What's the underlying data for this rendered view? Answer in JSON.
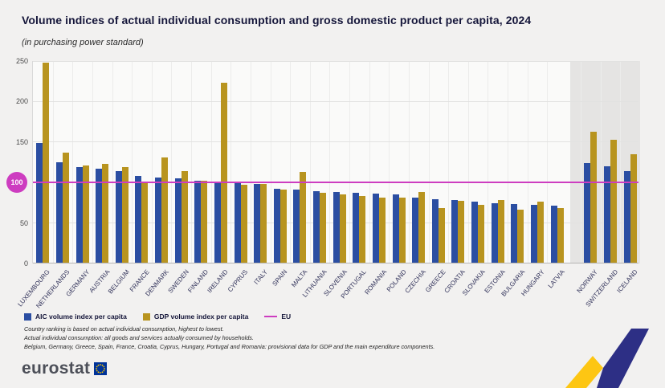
{
  "title": "Volume indices of actual individual consumption and gross domestic product per capita, 2024",
  "subtitle": "(in purchasing power standard)",
  "legend": {
    "aic_label": "AIC volume index per capita",
    "gdp_label": "GDP volume index per capita",
    "eu_label": "EU"
  },
  "footnotes": [
    "Country ranking is based on actual individual consumption, highest to lowest.",
    "Actual individual consumption: all goods and services actually consumed by households.",
    "Belgium, Germany, Greece, Spain, France, Croatia, Cyprus, Hungary, Portugal and Romania: provisional data for GDP and the main expenditure components."
  ],
  "branding": {
    "logo_text": "eurostat"
  },
  "colors": {
    "aic": "#2b4ea2",
    "gdp": "#b8941f",
    "eu_line": "#cd3dc0",
    "efta_bg": "#e5e4e3"
  },
  "chart_data": {
    "type": "bar",
    "title": "Volume indices of actual individual consumption and gross domestic product per capita, 2024",
    "subtitle": "(in purchasing power standard)",
    "xlabel": "",
    "ylabel": "",
    "ylim": [
      0,
      250
    ],
    "yticks": [
      0,
      50,
      100,
      150,
      200,
      250
    ],
    "grid": true,
    "legend_position": "bottom",
    "reference_line": {
      "label": "EU",
      "value": 100
    },
    "categories": [
      "LUXEMBOURG",
      "NETHERLANDS",
      "GERMANY",
      "AUSTRIA",
      "BELGIUM",
      "FRANCE",
      "DENMARK",
      "SWEDEN",
      "FINLAND",
      "IRELAND",
      "CYPRUS",
      "ITALY",
      "SPAIN",
      "MALTA",
      "LITHUANIA",
      "SLOVENIA",
      "PORTUGAL",
      "ROMANIA",
      "POLAND",
      "CZECHIA",
      "GREECE",
      "CROATIA",
      "SLOVAKIA",
      "ESTONIA",
      "BULGARIA",
      "HUNGARY",
      "LATVIA",
      "NORWAY",
      "SWITZERLAND",
      "ICELAND"
    ],
    "efta_group": [
      "NORWAY",
      "SWITZERLAND",
      "ICELAND"
    ],
    "series": [
      {
        "name": "AIC volume index per capita",
        "values": [
          148,
          124,
          118,
          116,
          113,
          107,
          105,
          104,
          101,
          100,
          98,
          97,
          91,
          90,
          88,
          87,
          86,
          85,
          84,
          80,
          78,
          77,
          75,
          73,
          72,
          71,
          70,
          123,
          119,
          113
        ]
      },
      {
        "name": "GDP volume index per capita",
        "values": [
          247,
          136,
          120,
          122,
          118,
          98,
          130,
          113,
          101,
          222,
          96,
          97,
          90,
          112,
          86,
          84,
          82,
          80,
          80,
          87,
          68,
          76,
          71,
          77,
          66,
          75,
          68,
          162,
          152,
          134
        ]
      }
    ]
  }
}
